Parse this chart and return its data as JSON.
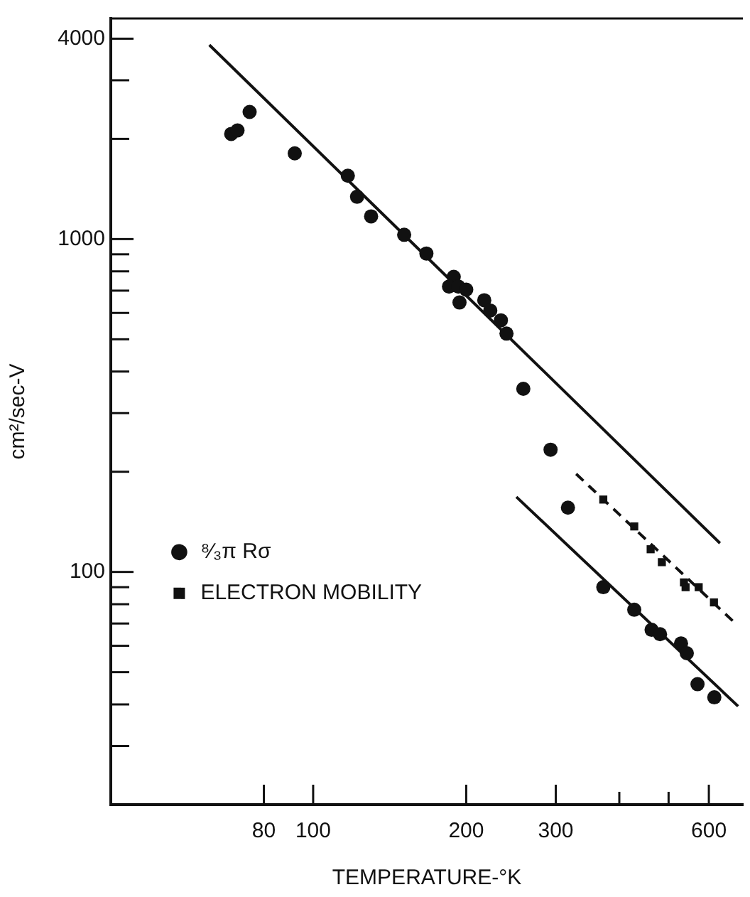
{
  "chart_data": {
    "type": "scatter",
    "xlabel": "TEMPERATURE-°K",
    "ylabel": "cm²/sec-V",
    "log": "xy",
    "grid": false,
    "legend": "left",
    "xlim": [
      40,
      700
    ],
    "xticks": [
      80,
      100,
      200,
      300,
      {
        "value": 400,
        "label": null
      },
      {
        "value": 500,
        "label": null
      },
      600
    ],
    "ylim": [
      20,
      4600
    ],
    "yticks": [
      {
        "value": 30,
        "label": null
      },
      {
        "value": 40,
        "label": null
      },
      {
        "value": 50,
        "label": null
      },
      {
        "value": 60,
        "label": null
      },
      {
        "value": 70,
        "label": null
      },
      {
        "value": 80,
        "label": null
      },
      {
        "value": 90,
        "label": null
      },
      100,
      {
        "value": 200,
        "label": null
      },
      {
        "value": 300,
        "label": null
      },
      {
        "value": 400,
        "label": null
      },
      {
        "value": 500,
        "label": null
      },
      {
        "value": 600,
        "label": null
      },
      {
        "value": 700,
        "label": null
      },
      {
        "value": 800,
        "label": null
      },
      {
        "value": 900,
        "label": null
      },
      1000,
      {
        "value": 2000,
        "label": null
      },
      {
        "value": 3000,
        "label": null
      },
      4000
    ],
    "series": [
      {
        "name": "⁸⁄₃π Rσ",
        "marker": "circle",
        "color": "#111111",
        "x": [
          69,
          71,
          75,
          92,
          117,
          122,
          130,
          151,
          167,
          189,
          185,
          193,
          200,
          194,
          217,
          223,
          234,
          240,
          259,
          293,
          317,
          372,
          428,
          463,
          481,
          529,
          543,
          570,
          615
        ],
        "values": [
          2070,
          2120,
          2410,
          1810,
          1550,
          1340,
          1170,
          1030,
          905,
          770,
          720,
          720,
          705,
          645,
          655,
          610,
          570,
          520,
          355,
          233,
          156,
          90,
          77,
          67,
          65,
          61,
          57,
          46,
          42
        ]
      },
      {
        "name": "ELECTRON MOBILITY",
        "marker": "square",
        "color": "#111111",
        "x": [
          372,
          428,
          461,
          485,
          536,
          540,
          573,
          614
        ],
        "values": [
          165,
          137,
          117,
          107,
          93,
          90,
          90,
          81
        ]
      },
      {
        "type": "line",
        "marker": "none",
        "line_style": "solid",
        "color": "#111111",
        "x": [
          62.5,
          631
        ],
        "values": [
          3830,
          122
        ]
      },
      {
        "type": "line",
        "marker": "none",
        "line_style": "solid",
        "color": "#111111",
        "x": [
          251,
          685
        ],
        "values": [
          168,
          39.5
        ]
      },
      {
        "type": "line",
        "marker": "none",
        "line_style": "dashed",
        "color": "#111111",
        "x": [
          329,
          677
        ],
        "values": [
          197,
          70
        ]
      }
    ]
  }
}
